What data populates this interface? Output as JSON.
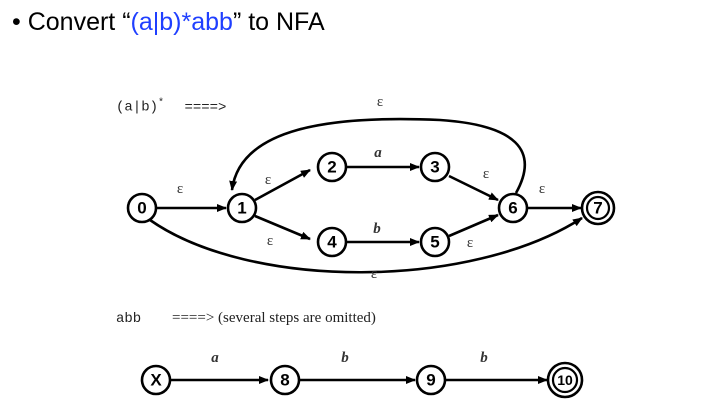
{
  "heading": {
    "bullet": "•",
    "prefix": "Convert “",
    "regex": "(a|b)*abb",
    "suffix": "” to NFA"
  },
  "nfa1": {
    "caption_expr": "(a|b)",
    "caption_star": "*",
    "caption_arrow": "====>",
    "states": [
      "0",
      "1",
      "2",
      "3",
      "4",
      "5",
      "6",
      "7"
    ],
    "accept_state": "7",
    "labels": {
      "eps": "ε",
      "a": "a",
      "b": "b"
    }
  },
  "nfa2": {
    "caption_expr": "abb",
    "caption_text": "====> (several steps are omitted)",
    "states": [
      "X",
      "8",
      "9",
      "10"
    ],
    "accept_state": "10",
    "labels": {
      "a": "a",
      "b": "b"
    }
  }
}
